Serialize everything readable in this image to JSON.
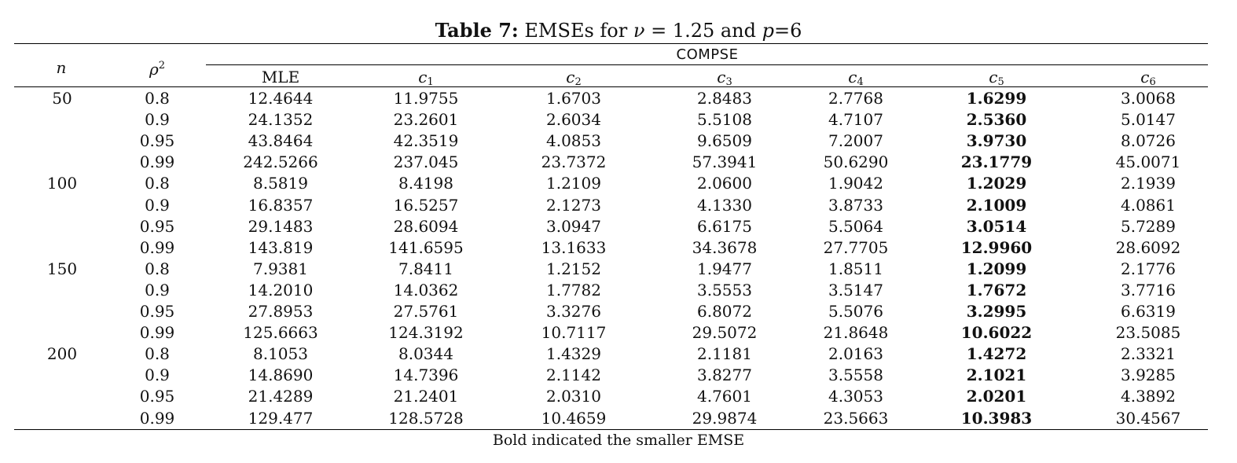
{
  "caption": {
    "label": "Table 7:",
    "text_before": " EMSEs for ",
    "nu": "ν",
    "text_eq": " = 1.25 and ",
    "p": "p",
    "text_after": "=6"
  },
  "headers": {
    "n": "n",
    "rho": "ρ",
    "rho_sup": "2",
    "group": "COMPSE",
    "columns": [
      {
        "main": "MLE",
        "sub": ""
      },
      {
        "main": "c",
        "sub": "1"
      },
      {
        "main": "c",
        "sub": "2"
      },
      {
        "main": "c",
        "sub": "3"
      },
      {
        "main": "c",
        "sub": "4"
      },
      {
        "main": "c",
        "sub": "5"
      },
      {
        "main": "c",
        "sub": "6"
      }
    ]
  },
  "bold_column_index": 6,
  "rows": [
    {
      "n": "50",
      "rho2": "0.8",
      "values": [
        "12.4644",
        "11.9755",
        "1.6703",
        "2.8483",
        "2.7768",
        "1.6299",
        "3.0068"
      ]
    },
    {
      "n": "",
      "rho2": "0.9",
      "values": [
        "24.1352",
        "23.2601",
        "2.6034",
        "5.5108",
        "4.7107",
        "2.5360",
        "5.0147"
      ]
    },
    {
      "n": "",
      "rho2": "0.95",
      "values": [
        "43.8464",
        "42.3519",
        "4.0853",
        "9.6509",
        "7.2007",
        "3.9730",
        "8.0726"
      ]
    },
    {
      "n": "",
      "rho2": "0.99",
      "values": [
        "242.5266",
        "237.045",
        "23.7372",
        "57.3941",
        "50.6290",
        "23.1779",
        "45.0071"
      ]
    },
    {
      "n": "100",
      "rho2": "0.8",
      "values": [
        "8.5819",
        "8.4198",
        "1.2109",
        "2.0600",
        "1.9042",
        "1.2029",
        "2.1939"
      ]
    },
    {
      "n": "",
      "rho2": "0.9",
      "values": [
        "16.8357",
        "16.5257",
        "2.1273",
        "4.1330",
        "3.8733",
        "2.1009",
        "4.0861"
      ]
    },
    {
      "n": "",
      "rho2": "0.95",
      "values": [
        "29.1483",
        "28.6094",
        "3.0947",
        "6.6175",
        "5.5064",
        "3.0514",
        "5.7289"
      ]
    },
    {
      "n": "",
      "rho2": "0.99",
      "values": [
        "143.819",
        "141.6595",
        "13.1633",
        "34.3678",
        "27.7705",
        "12.9960",
        "28.6092"
      ]
    },
    {
      "n": "150",
      "rho2": "0.8",
      "values": [
        "7.9381",
        "7.8411",
        "1.2152",
        "1.9477",
        "1.8511",
        "1.2099",
        "2.1776"
      ]
    },
    {
      "n": "",
      "rho2": "0.9",
      "values": [
        "14.2010",
        "14.0362",
        "1.7782",
        "3.5553",
        "3.5147",
        "1.7672",
        "3.7716"
      ]
    },
    {
      "n": "",
      "rho2": "0.95",
      "values": [
        "27.8953",
        "27.5761",
        "3.3276",
        "6.8072",
        "5.5076",
        "3.2995",
        "6.6319"
      ]
    },
    {
      "n": "",
      "rho2": "0.99",
      "values": [
        "125.6663",
        "124.3192",
        "10.7117",
        "29.5072",
        "21.8648",
        "10.6022",
        "23.5085"
      ]
    },
    {
      "n": "200",
      "rho2": "0.8",
      "values": [
        "8.1053",
        "8.0344",
        "1.4329",
        "2.1181",
        "2.0163",
        "1.4272",
        "2.3321"
      ]
    },
    {
      "n": "",
      "rho2": "0.9",
      "values": [
        "14.8690",
        "14.7396",
        "2.1142",
        "3.8277",
        "3.5558",
        "2.1021",
        "3.9285"
      ]
    },
    {
      "n": "",
      "rho2": "0.95",
      "values": [
        "21.4289",
        "21.2401",
        "2.0310",
        "4.7601",
        "4.3053",
        "2.0201",
        "4.3892"
      ]
    },
    {
      "n": "",
      "rho2": "0.99",
      "values": [
        "129.477",
        "128.5728",
        "10.4659",
        "29.9874",
        "23.5663",
        "10.3983",
        "30.4567"
      ]
    }
  ],
  "note": "Bold indicated the smaller EMSE"
}
